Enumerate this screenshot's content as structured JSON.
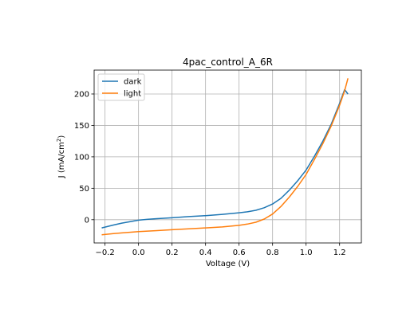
{
  "chart_data": {
    "type": "line",
    "title": "4pac_control_A_6R",
    "xlabel": "Voltage (V)",
    "ylabel_prefix": "J (mA/cm",
    "ylabel_sup": "2",
    "ylabel_suffix": ")",
    "xlim": [
      -0.265,
      1.33
    ],
    "ylim": [
      -37,
      238
    ],
    "xticks": [
      -0.2,
      0.0,
      0.2,
      0.4,
      0.6,
      0.8,
      1.0,
      1.2
    ],
    "xtick_labels": [
      "−0.2",
      "0.0",
      "0.2",
      "0.4",
      "0.6",
      "0.8",
      "1.0",
      "1.2"
    ],
    "yticks": [
      0,
      50,
      100,
      150,
      200
    ],
    "ytick_labels": [
      "0",
      "50",
      "100",
      "150",
      "200"
    ],
    "grid": true,
    "legend_position": "top-left",
    "series": [
      {
        "name": "dark",
        "color": "#1f77b4",
        "x": [
          -0.22,
          -0.15,
          -0.1,
          -0.05,
          0.0,
          0.05,
          0.1,
          0.2,
          0.3,
          0.4,
          0.5,
          0.6,
          0.65,
          0.7,
          0.75,
          0.8,
          0.85,
          0.9,
          0.95,
          1.0,
          1.05,
          1.1,
          1.15,
          1.2,
          1.23,
          1.25
        ],
        "y": [
          -13,
          -8.5,
          -5.5,
          -3,
          -0.8,
          0.5,
          1.5,
          3,
          5,
          6.5,
          8.5,
          11,
          12.5,
          15,
          19,
          25,
          34,
          47,
          62,
          79,
          101,
          125,
          152,
          185,
          207,
          200
        ]
      },
      {
        "name": "light",
        "color": "#ff7f0e",
        "x": [
          -0.22,
          -0.15,
          -0.1,
          0.0,
          0.1,
          0.2,
          0.3,
          0.4,
          0.5,
          0.6,
          0.65,
          0.7,
          0.75,
          0.8,
          0.85,
          0.9,
          0.95,
          1.0,
          1.05,
          1.1,
          1.15,
          1.2,
          1.23,
          1.25
        ],
        "y": [
          -24,
          -22,
          -21,
          -19,
          -17.5,
          -16,
          -14.5,
          -13,
          -11.5,
          -9,
          -7,
          -4,
          1,
          9,
          21,
          36,
          53,
          72,
          96,
          121,
          149,
          182,
          205,
          225
        ]
      }
    ]
  }
}
